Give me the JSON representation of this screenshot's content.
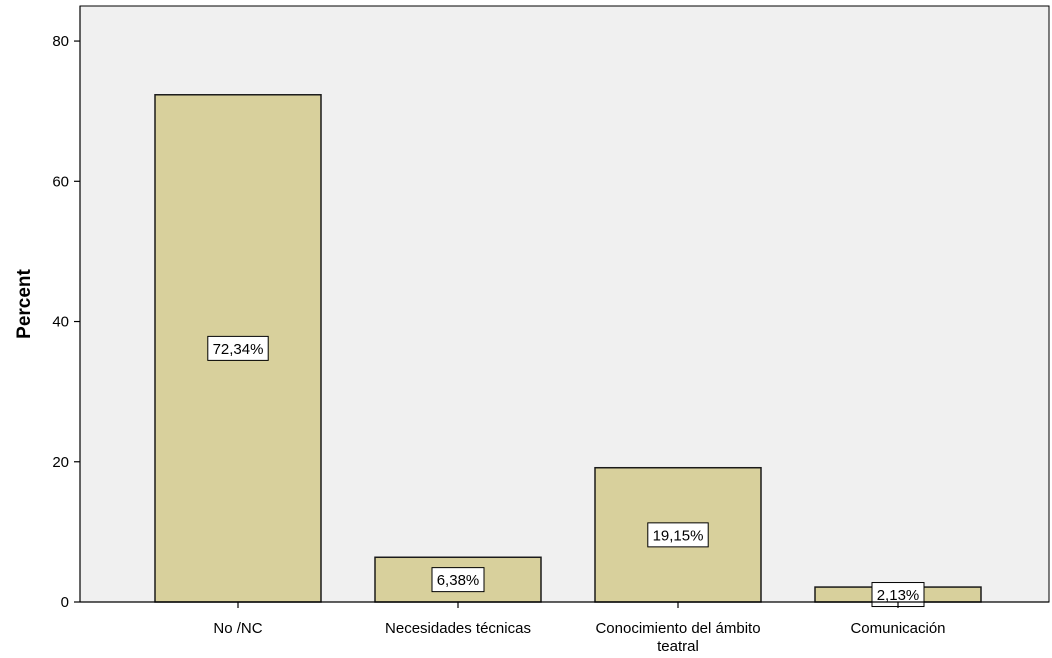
{
  "chart_data": {
    "type": "bar",
    "categories": [
      [
        "No /NC"
      ],
      [
        "Necesidades técnicas"
      ],
      [
        "Conocimiento del ámbito",
        "teatral"
      ],
      [
        "Comunicación"
      ]
    ],
    "values": [
      72.34,
      6.38,
      19.15,
      2.13
    ],
    "data_labels": [
      "72,34%",
      "6,38%",
      "19,15%",
      "2,13%"
    ],
    "title": "",
    "xlabel": "",
    "ylabel": "Percent",
    "ylim": [
      0,
      85
    ],
    "yticks": [
      0,
      20,
      40,
      60,
      80
    ],
    "grid": false,
    "legend": "none",
    "colors": {
      "bar_fill": "#d8d09c",
      "bar_stroke": "#1a1a1a",
      "plot_background": "#f0f0f0",
      "axis": "#000000",
      "label_box_fill": "#ffffff"
    }
  }
}
